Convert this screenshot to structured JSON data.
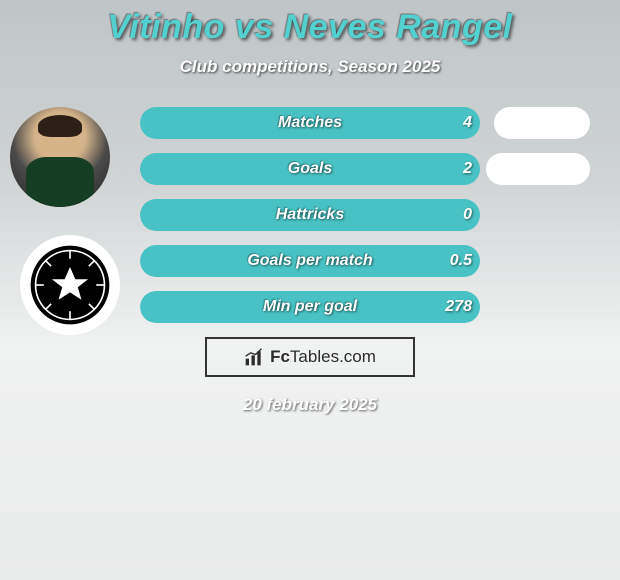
{
  "title": "Vitinho vs Neves Rangel",
  "subtitle": "Club competitions, Season 2025",
  "date": "20 february 2025",
  "logo_text_bold": "Fc",
  "logo_text_rest": "Tables.com",
  "colors": {
    "title": "#53d0d0",
    "bar_left_fill": "#48c2c4",
    "bar_right_fill": "#ffffff",
    "border": "#343434"
  },
  "players": {
    "left": {
      "name": "Vitinho"
    },
    "right": {
      "name": "Neves Rangel"
    }
  },
  "stats": [
    {
      "label": "Matches",
      "left_value": "4",
      "left_pct": 100,
      "right_pct": 0,
      "right_pill_width": 96
    },
    {
      "label": "Goals",
      "left_value": "2",
      "left_pct": 100,
      "right_pct": 0,
      "right_pill_width": 104
    },
    {
      "label": "Hattricks",
      "left_value": "0",
      "left_pct": 100,
      "right_pct": 0,
      "right_pill_width": 0
    },
    {
      "label": "Goals per match",
      "left_value": "0.5",
      "left_pct": 100,
      "right_pct": 0,
      "right_pill_width": 0
    },
    {
      "label": "Min per goal",
      "left_value": "278",
      "left_pct": 100,
      "right_pct": 0,
      "right_pill_width": 0
    }
  ]
}
